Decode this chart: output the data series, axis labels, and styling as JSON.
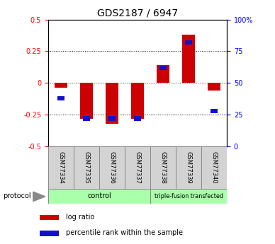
{
  "title": "GDS2187 / 6947",
  "samples": [
    "GSM77334",
    "GSM77335",
    "GSM77336",
    "GSM77337",
    "GSM77338",
    "GSM77339",
    "GSM77340"
  ],
  "log_ratio": [
    -0.04,
    -0.28,
    -0.32,
    -0.28,
    0.14,
    0.38,
    -0.06
  ],
  "percentile_rank": [
    38,
    22,
    22,
    22,
    62,
    82,
    28
  ],
  "ylim_left": [
    -0.5,
    0.5
  ],
  "ylim_right": [
    0,
    100
  ],
  "yticks_left": [
    -0.5,
    -0.25,
    0.0,
    0.25,
    0.5
  ],
  "ytick_labels_left": [
    "-0.5",
    "-0.25",
    "0",
    "0.25",
    "0.5"
  ],
  "yticks_right": [
    0,
    25,
    50,
    75,
    100
  ],
  "ytick_labels_right": [
    "0",
    "25",
    "50",
    "75",
    "100%"
  ],
  "bar_color_red": "#CC0000",
  "bar_color_blue": "#1111CC",
  "bar_width": 0.5,
  "blue_marker_size": 0.03,
  "protocol_label": "protocol",
  "legend_red": "log ratio",
  "legend_blue": "percentile rank within the sample",
  "title_fontsize": 10,
  "tick_fontsize": 7,
  "label_fontsize": 7
}
